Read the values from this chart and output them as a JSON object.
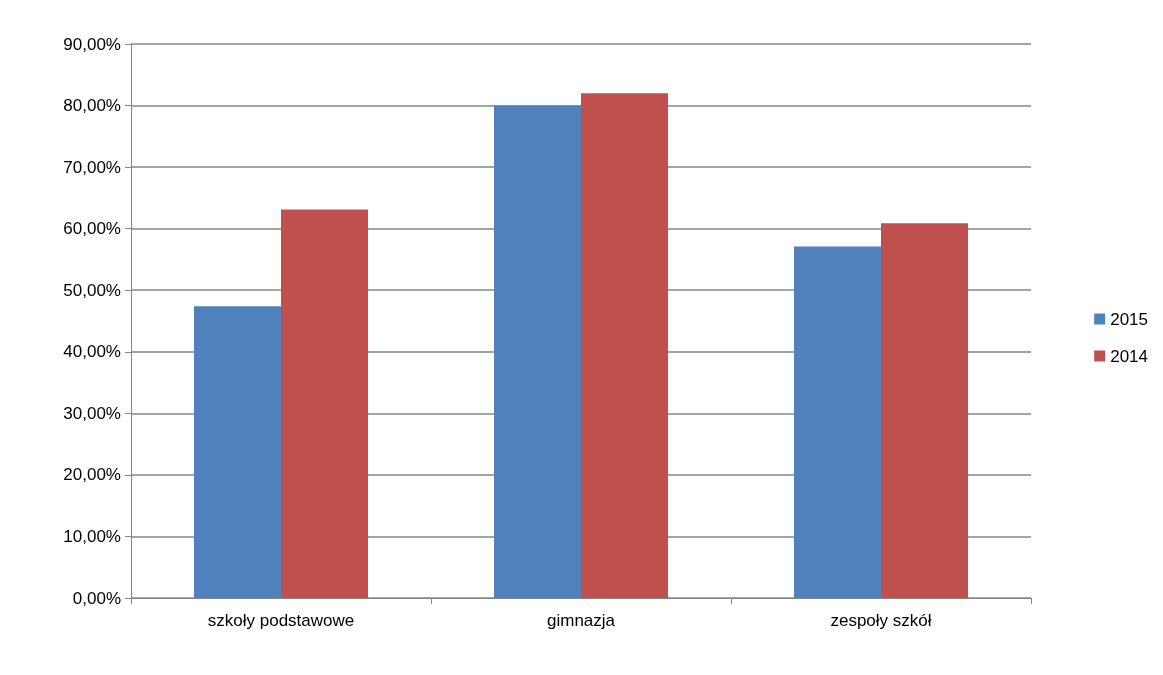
{
  "chart_data": {
    "type": "bar",
    "categories": [
      "szkoły podstawowe",
      "gimnazja",
      "zespoły szkół"
    ],
    "series": [
      {
        "name": "2015",
        "color": "#4f81bd",
        "values": [
          47.4,
          80,
          57.1
        ]
      },
      {
        "name": "2014",
        "color": "#c0504d",
        "values": [
          63.1,
          82,
          60.9
        ]
      }
    ],
    "ylim": [
      0,
      90
    ],
    "yticks": [
      {
        "value": 0,
        "label": "0,00%"
      },
      {
        "value": 10,
        "label": "10,00%"
      },
      {
        "value": 20,
        "label": "20,00%"
      },
      {
        "value": 30,
        "label": "30,00%"
      },
      {
        "value": 40,
        "label": "40,00%"
      },
      {
        "value": 50,
        "label": "50,00%"
      },
      {
        "value": 60,
        "label": "60,00%"
      },
      {
        "value": 70,
        "label": "70,00%"
      },
      {
        "value": 80,
        "label": "80,00%"
      },
      {
        "value": 90,
        "label": "90,00%"
      }
    ],
    "grid": "y",
    "legend": "right"
  }
}
